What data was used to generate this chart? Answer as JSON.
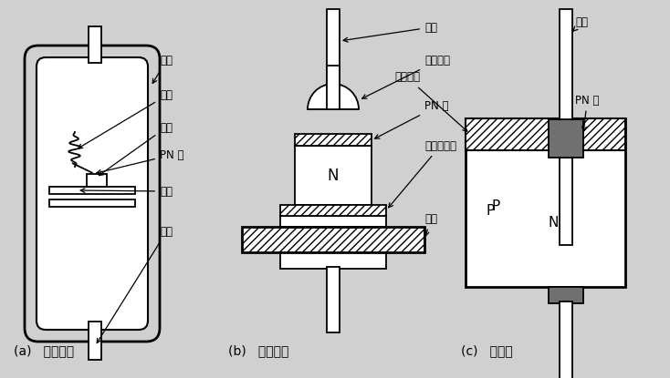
{
  "bg_color": "#d0d0d0",
  "white": "#ffffff",
  "black": "#000000",
  "dark_gray": "#707070",
  "title_a": "(a)   点接触型",
  "title_b": "(b)   面接触型",
  "title_c": "(c)   平面型",
  "label_waike": "外壳",
  "label_chusi": "触丝",
  "label_jingpian": "晶片",
  "label_pnjie_a": "PN 结",
  "label_zhijia": "支架",
  "label_yinxian_a": "引线",
  "label_yinxian_b": "引线",
  "label_lvhejinqiu": "铝合金球",
  "label_pnjie_b": "PN 结",
  "label_jinjinhecengjin": "金锑合金层",
  "label_dizuo": "底座",
  "label_yinxian_c": "引线",
  "label_eryanghuagui": "二氧化硅",
  "label_pnjie_c": "PN 结",
  "label_P": "P",
  "label_N_b": "N",
  "label_N_c": "N"
}
